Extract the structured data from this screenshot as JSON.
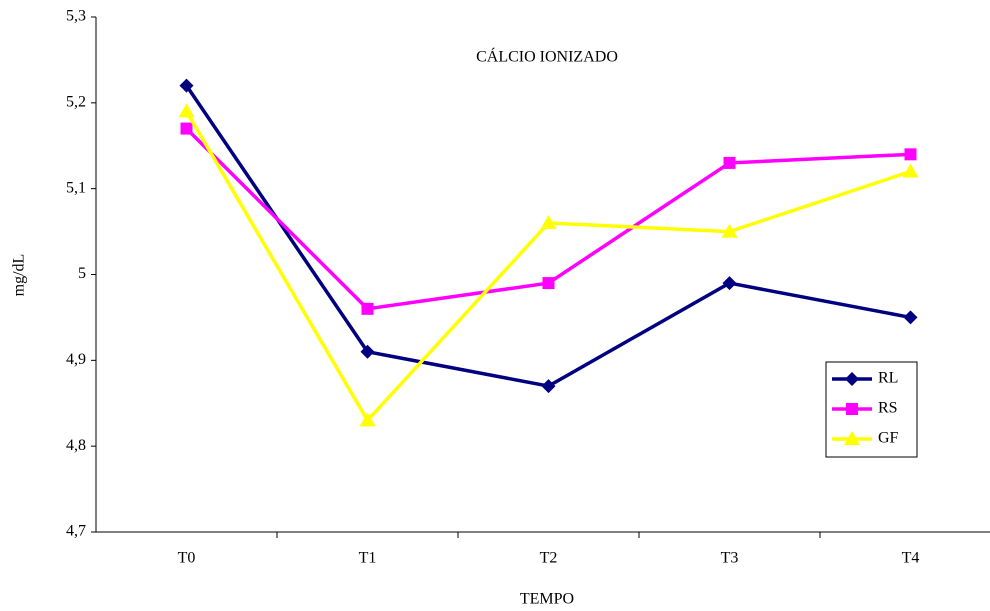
{
  "chart_data": {
    "type": "line",
    "title": "CÁLCIO IONIZADO",
    "x_label": "TEMPO",
    "y_label": "mg/dL",
    "categories": [
      "T0",
      "T1",
      "T2",
      "T3",
      "T4"
    ],
    "series": [
      {
        "name": "RL",
        "color": "#000080",
        "marker": "diamond",
        "values": [
          5.22,
          4.91,
          4.87,
          4.99,
          4.95
        ]
      },
      {
        "name": "RS",
        "color": "#ff00ff",
        "marker": "square",
        "values": [
          5.17,
          4.96,
          4.99,
          5.13,
          5.14
        ]
      },
      {
        "name": "GF",
        "color": "#ffff00",
        "marker": "triangle",
        "values": [
          5.19,
          4.83,
          5.06,
          5.05,
          5.12
        ]
      }
    ],
    "ylim": [
      4.7,
      5.3
    ],
    "yticks": [
      {
        "value": 4.7,
        "label": "4,7"
      },
      {
        "value": 4.8,
        "label": "4,8"
      },
      {
        "value": 4.9,
        "label": "4,9"
      },
      5,
      {
        "value": 5.1,
        "label": "5,1"
      },
      {
        "value": 5.2,
        "label": "5,2"
      },
      {
        "value": 5.3,
        "label": "5,3"
      }
    ],
    "grid": false,
    "legend": "right"
  }
}
